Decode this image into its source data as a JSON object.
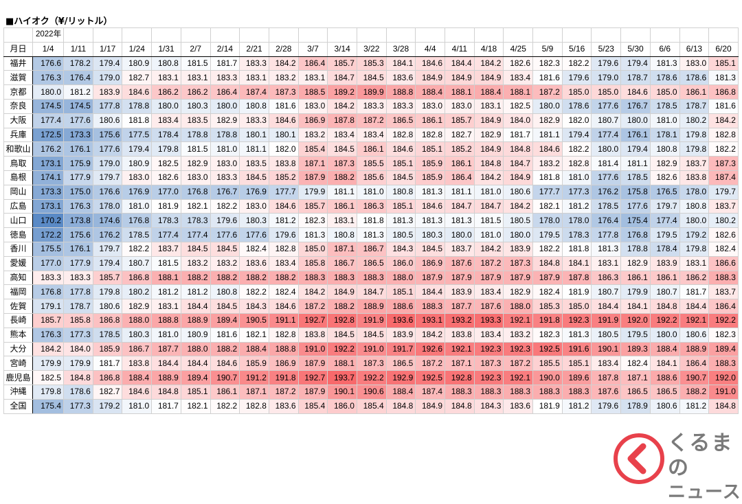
{
  "title": "■ハイオク（¥/リットル）",
  "year_label": "2022年",
  "row_header": "月日",
  "dates": [
    "1/4",
    "1/11",
    "1/17",
    "1/24",
    "1/31",
    "2/7",
    "2/14",
    "2/21",
    "2/28",
    "3/7",
    "3/14",
    "3/22",
    "3/28",
    "4/4",
    "4/11",
    "4/18",
    "4/25",
    "5/9",
    "5/16",
    "5/23",
    "5/30",
    "6/6",
    "6/13",
    "6/20"
  ],
  "rows": [
    {
      "name": "福井",
      "values": [
        176.6,
        178.2,
        179.4,
        180.9,
        180.8,
        181.5,
        181.7,
        183.3,
        184.2,
        186.4,
        185.7,
        185.3,
        184.1,
        184.6,
        184.4,
        184.2,
        182.6,
        182.3,
        182.2,
        179.6,
        179.4,
        181.3,
        183.0,
        185.1
      ]
    },
    {
      "name": "滋賀",
      "values": [
        176.3,
        176.4,
        179.0,
        182.7,
        183.1,
        183.1,
        183.3,
        183.1,
        183.2,
        183.1,
        184.7,
        184.5,
        183.6,
        184.9,
        184.9,
        184.9,
        183.4,
        181.6,
        179.6,
        179.0,
        178.7,
        178.6,
        178.6,
        181.3
      ]
    },
    {
      "name": "京都",
      "values": [
        180.0,
        181.2,
        183.9,
        184.6,
        186.2,
        186.2,
        186.4,
        187.4,
        187.3,
        188.5,
        189.2,
        189.9,
        188.8,
        188.4,
        188.1,
        188.4,
        188.1,
        187.2,
        185.0,
        185.0,
        184.6,
        185.0,
        186.1,
        186.8
      ]
    },
    {
      "name": "奈良",
      "values": [
        174.5,
        174.5,
        177.8,
        178.8,
        180.0,
        180.3,
        180.0,
        180.8,
        181.6,
        183.0,
        184.2,
        183.3,
        183.3,
        183.0,
        183.0,
        183.1,
        182.5,
        180.0,
        178.6,
        177.6,
        176.7,
        178.5,
        178.7,
        181.6
      ]
    },
    {
      "name": "大阪",
      "values": [
        177.4,
        177.6,
        180.6,
        181.8,
        183.4,
        183.5,
        182.9,
        183.3,
        184.6,
        186.9,
        187.8,
        187.2,
        186.5,
        186.1,
        185.7,
        184.9,
        184.0,
        182.9,
        182.0,
        180.7,
        180.0,
        181.0,
        180.2,
        184.2
      ]
    },
    {
      "name": "兵庫",
      "values": [
        172.5,
        173.3,
        175.6,
        177.5,
        178.4,
        178.8,
        178.8,
        180.1,
        180.1,
        183.2,
        183.4,
        183.4,
        182.8,
        182.8,
        182.7,
        182.9,
        181.7,
        181.1,
        179.4,
        177.4,
        176.1,
        178.1,
        179.8,
        182.8
      ]
    },
    {
      "name": "和歌山",
      "values": [
        176.2,
        176.1,
        177.6,
        179.4,
        179.8,
        181.5,
        181.0,
        181.1,
        182.0,
        185.4,
        184.5,
        186.1,
        184.6,
        185.1,
        185.2,
        184.9,
        184.8,
        184.6,
        182.2,
        180.0,
        179.4,
        180.8,
        179.8,
        182.2
      ]
    },
    {
      "name": "鳥取",
      "values": [
        173.1,
        175.9,
        179.0,
        180.9,
        182.5,
        182.9,
        183.0,
        183.5,
        183.8,
        187.1,
        187.3,
        185.5,
        185.1,
        185.9,
        186.1,
        184.8,
        184.7,
        183.2,
        182.8,
        181.4,
        181.1,
        182.9,
        183.7,
        187.3
      ]
    },
    {
      "name": "島根",
      "values": [
        174.1,
        177.9,
        179.7,
        183.0,
        182.6,
        183.0,
        183.3,
        184.5,
        185.2,
        187.9,
        188.2,
        185.6,
        184.5,
        185.9,
        186.4,
        184.2,
        184.9,
        181.8,
        181.0,
        177.6,
        178.5,
        182.6,
        183.8,
        187.4
      ]
    },
    {
      "name": "岡山",
      "values": [
        173.3,
        175.0,
        176.6,
        176.9,
        177.0,
        176.8,
        176.7,
        176.9,
        177.7,
        179.9,
        181.1,
        181.0,
        180.8,
        181.3,
        181.1,
        181.0,
        180.6,
        177.7,
        177.3,
        176.2,
        175.8,
        176.5,
        178.0,
        179.7
      ]
    },
    {
      "name": "広島",
      "values": [
        173.1,
        176.3,
        178.0,
        181.0,
        181.9,
        182.1,
        182.2,
        183.0,
        184.6,
        185.7,
        186.1,
        186.3,
        185.1,
        184.6,
        184.7,
        184.7,
        184.2,
        182.1,
        181.2,
        178.5,
        177.6,
        179.7,
        180.8,
        183.7
      ]
    },
    {
      "name": "山口",
      "values": [
        170.2,
        173.8,
        174.6,
        176.8,
        178.3,
        178.3,
        179.6,
        180.3,
        181.2,
        182.3,
        183.1,
        181.8,
        181.3,
        181.3,
        181.3,
        181.5,
        180.5,
        178.0,
        178.0,
        176.4,
        175.4,
        177.4,
        180.0,
        180.2
      ]
    },
    {
      "name": "徳島",
      "values": [
        172.2,
        175.6,
        176.2,
        178.5,
        177.4,
        177.4,
        177.6,
        177.6,
        179.6,
        181.3,
        180.8,
        181.3,
        180.5,
        180.3,
        180.0,
        181.0,
        180.0,
        179.5,
        178.3,
        177.8,
        176.8,
        179.5,
        179.2,
        182.6
      ]
    },
    {
      "name": "香川",
      "values": [
        175.5,
        176.1,
        179.7,
        182.2,
        183.7,
        184.5,
        184.5,
        182.4,
        182.8,
        185.0,
        187.1,
        186.7,
        184.3,
        184.5,
        183.7,
        184.2,
        183.9,
        182.2,
        181.8,
        181.3,
        178.8,
        178.4,
        179.8,
        182.4
      ]
    },
    {
      "name": "愛媛",
      "values": [
        177.0,
        177.9,
        179.4,
        180.7,
        181.5,
        183.2,
        183.2,
        183.6,
        183.4,
        185.8,
        186.7,
        186.5,
        186.0,
        186.9,
        187.6,
        187.2,
        187.3,
        184.8,
        184.1,
        183.1,
        182.9,
        183.9,
        183.1,
        186.6
      ]
    },
    {
      "name": "高知",
      "values": [
        183.3,
        183.3,
        185.7,
        186.8,
        188.1,
        188.2,
        188.2,
        188.2,
        188.2,
        188.3,
        188.3,
        188.3,
        188.0,
        187.9,
        187.9,
        187.9,
        187.9,
        187.9,
        187.8,
        186.3,
        186.1,
        186.1,
        186.2,
        188.3
      ]
    },
    {
      "name": "福岡",
      "values": [
        176.8,
        177.8,
        179.8,
        180.2,
        181.2,
        181.2,
        180.8,
        182.2,
        182.4,
        184.2,
        184.9,
        184.7,
        185.1,
        184.4,
        183.9,
        183.4,
        182.9,
        182.4,
        181.9,
        180.7,
        179.9,
        180.7,
        181.7,
        183.7
      ]
    },
    {
      "name": "佐賀",
      "values": [
        179.1,
        178.7,
        180.6,
        182.9,
        183.1,
        184.4,
        184.5,
        184.3,
        184.6,
        187.2,
        188.2,
        188.9,
        188.6,
        188.3,
        187.7,
        187.6,
        188.0,
        185.3,
        185.0,
        184.4,
        184.1,
        184.8,
        184.4,
        186.4
      ]
    },
    {
      "name": "長崎",
      "values": [
        185.7,
        185.8,
        186.8,
        188.0,
        188.8,
        188.9,
        189.4,
        190.5,
        191.1,
        192.7,
        192.8,
        191.9,
        193.6,
        193.1,
        193.2,
        193.3,
        192.1,
        191.8,
        192.3,
        191.9,
        192.0,
        192.2,
        192.1,
        192.2
      ]
    },
    {
      "name": "熊本",
      "values": [
        176.3,
        177.3,
        178.5,
        180.3,
        181.0,
        180.9,
        181.6,
        182.1,
        182.8,
        183.8,
        184.5,
        184.5,
        183.9,
        184.2,
        183.8,
        183.4,
        183.2,
        182.3,
        181.3,
        180.5,
        179.5,
        180.0,
        180.6,
        182.3
      ]
    },
    {
      "name": "大分",
      "values": [
        184.2,
        184.0,
        185.9,
        186.7,
        187.7,
        188.0,
        188.2,
        188.4,
        188.8,
        191.0,
        192.2,
        191.0,
        191.7,
        192.6,
        192.1,
        192.3,
        192.3,
        192.5,
        191.6,
        190.1,
        189.3,
        188.4,
        188.9,
        189.4
      ]
    },
    {
      "name": "宮崎",
      "values": [
        179.9,
        179.9,
        181.7,
        183.8,
        184.4,
        184.4,
        184.6,
        185.9,
        186.9,
        187.9,
        188.1,
        187.3,
        186.5,
        187.2,
        187.1,
        187.3,
        187.2,
        185.5,
        185.1,
        183.4,
        182.4,
        184.1,
        186.4,
        188.3
      ]
    },
    {
      "name": "鹿児島",
      "values": [
        182.5,
        184.8,
        186.8,
        188.4,
        188.9,
        189.4,
        190.7,
        191.2,
        191.8,
        192.7,
        193.7,
        192.2,
        192.9,
        192.5,
        192.8,
        192.3,
        192.1,
        190.0,
        189.6,
        187.8,
        187.1,
        188.6,
        190.7,
        192.0
      ]
    },
    {
      "name": "沖縄",
      "values": [
        179.8,
        178.6,
        182.7,
        184.6,
        184.8,
        185.1,
        186.1,
        187.1,
        187.2,
        187.9,
        190.1,
        190.6,
        188.4,
        187.4,
        188.3,
        188.3,
        188.3,
        188.3,
        188.3,
        187.6,
        186.5,
        186.5,
        188.2,
        191.0
      ]
    },
    {
      "name": "全国",
      "values": [
        175.4,
        177.3,
        179.2,
        181.0,
        181.7,
        182.1,
        182.2,
        182.8,
        183.6,
        185.4,
        186.0,
        185.4,
        184.8,
        184.9,
        184.8,
        184.3,
        183.6,
        181.9,
        181.2,
        179.6,
        178.9,
        180.6,
        181.2,
        184.8
      ]
    }
  ],
  "color_scale": {
    "min_value": 170.2,
    "mid_value": 181.9,
    "max_value": 193.7,
    "min_color": "#5a8ac6",
    "mid_color": "#ffffff",
    "max_color": "#f8696b"
  },
  "logo": {
    "line1": "くるまの",
    "line2": "ニュース",
    "mark_color": "#e8414b"
  }
}
